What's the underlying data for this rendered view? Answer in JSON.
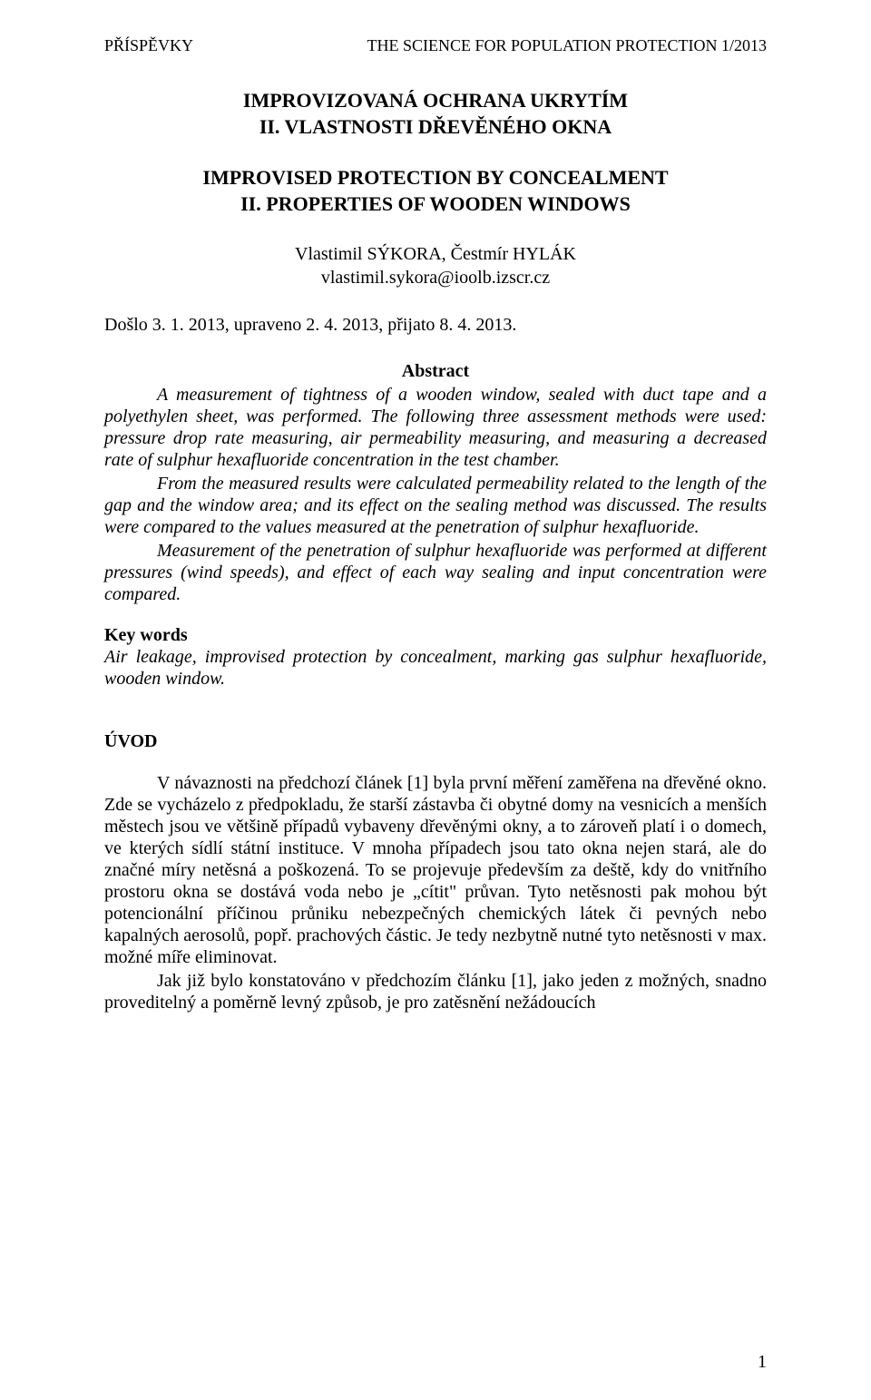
{
  "header": {
    "left": "PŘÍSPĚVKY",
    "right": "THE SCIENCE FOR POPULATION PROTECTION 1/2013"
  },
  "title": {
    "line1": "IMPROVIZOVANÁ OCHRANA UKRYTÍM",
    "line2": "II. VLASTNOSTI DŘEVĚNÉHO OKNA"
  },
  "subtitle": {
    "line1": "IMPROVISED PROTECTION BY CONCEALMENT",
    "line2": "II. PROPERTIES OF WOODEN WINDOWS"
  },
  "authors": {
    "names": "Vlastimil SÝKORA, Čestmír HYLÁK",
    "email": "vlastimil.sykora@ioolb.izscr.cz"
  },
  "dates": "Došlo 3. 1. 2013, upraveno 2. 4. 2013, přijato 8. 4. 2013.",
  "abstract": {
    "label": "Abstract",
    "p1": "A measurement of tightness of a wooden window, sealed with duct tape and a polyethylen sheet, was performed. The following three assessment methods were used: pressure drop rate measuring, air permeability measuring, and measuring a decreased rate of sulphur hexafluoride concentration in the test chamber.",
    "p2": "From the measured results were calculated permeability related to the length of the gap and the window area; and its effect on the sealing method was discussed. The results were compared to the values measured at the penetration of sulphur hexafluoride.",
    "p3": "Measurement of the penetration of sulphur hexafluoride was performed at different pressures (wind speeds), and effect of each way sealing and input concentration were compared."
  },
  "keywords": {
    "label": "Key words",
    "text": "Air leakage, improvised protection by concealment, marking gas sulphur hexafluoride, wooden window."
  },
  "intro": {
    "heading": "ÚVOD",
    "p1": "V návaznosti na předchozí článek [1] byla první měření zaměřena na dřevěné okno. Zde se vycházelo z předpokladu, že starší zástavba či obytné domy na vesnicích a menších městech jsou ve většině případů vybaveny dřevěnými okny, a to zároveň platí i o domech, ve kterých sídlí státní instituce. V mnoha případech jsou tato okna nejen stará, ale do značné míry netěsná a poškozená. To se projevuje především za deště, kdy do vnitřního prostoru okna se dostává voda nebo je „cítit\" průvan. Tyto netěsnosti pak mohou být potencionální příčinou průniku nebezpečných chemických látek či pevných nebo kapalných aerosolů, popř. prachových částic. Je tedy nezbytně nutné tyto netěsnosti v max. možné míře eliminovat.",
    "p2": "Jak již bylo konstatováno v předchozím článku [1], jako jeden z možných, snadno proveditelný a poměrně levný způsob, je pro zatěsnění nežádoucích"
  },
  "pageNumber": "1"
}
